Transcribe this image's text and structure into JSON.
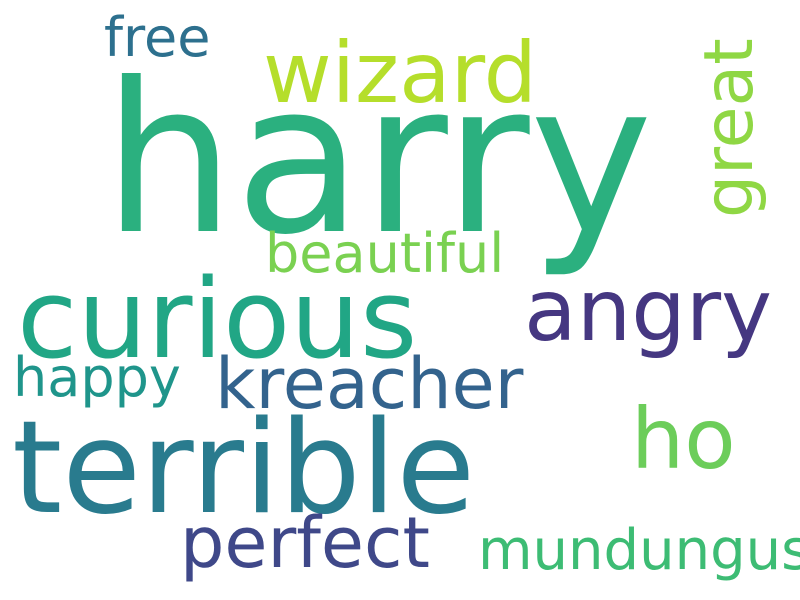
{
  "words": [
    {
      "id": "harry",
      "text": "harry",
      "color": "#2bb07f",
      "orientation": "horizontal"
    },
    {
      "id": "curious",
      "text": "curious",
      "color": "#21a685",
      "orientation": "horizontal"
    },
    {
      "id": "terrible",
      "text": "terrible",
      "color": "#297b8e",
      "orientation": "horizontal"
    },
    {
      "id": "angry",
      "text": "angry",
      "color": "#453781",
      "orientation": "horizontal"
    },
    {
      "id": "wizard",
      "text": "wizard",
      "color": "#b5de2b",
      "orientation": "horizontal"
    },
    {
      "id": "kreacher",
      "text": "kreacher",
      "color": "#33638d",
      "orientation": "horizontal"
    },
    {
      "id": "perfect",
      "text": "perfect",
      "color": "#3f4889",
      "orientation": "horizontal"
    },
    {
      "id": "mundungus",
      "text": "mundungus",
      "color": "#3dbc74",
      "orientation": "horizontal"
    },
    {
      "id": "ho",
      "text": "ho",
      "color": "#6ccd5a",
      "orientation": "horizontal"
    },
    {
      "id": "free",
      "text": "free",
      "color": "#2d708e",
      "orientation": "horizontal"
    },
    {
      "id": "happy",
      "text": "happy",
      "color": "#1f958b",
      "orientation": "horizontal"
    },
    {
      "id": "beautiful",
      "text": "beautiful",
      "color": "#7ad151",
      "orientation": "horizontal"
    },
    {
      "id": "great",
      "text": "great",
      "color": "#8fd744",
      "orientation": "vertical"
    }
  ]
}
